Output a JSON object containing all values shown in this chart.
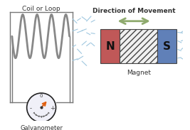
{
  "background_color": "#ffffff",
  "coil_label": "Coil or Loop",
  "coil_color": "#888888",
  "galv_label": "Galvanometer",
  "galv_needle_color": "#e06010",
  "direction_label": "Direction of Movement",
  "arrow_color": "#8faa6e",
  "N_color": "#c05858",
  "S_color": "#6080b8",
  "N_label": "N",
  "S_label": "S",
  "hatch_color": "#999999",
  "magnet_label": "Magnet",
  "field_lines_color": "#a0c8e0"
}
